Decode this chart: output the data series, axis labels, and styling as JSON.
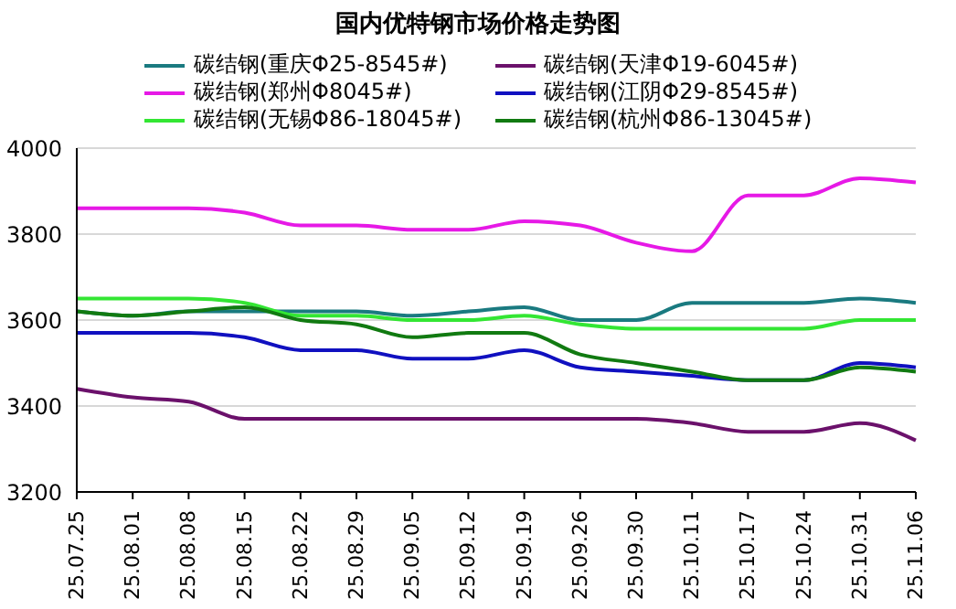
{
  "chart_data": {
    "type": "line",
    "title": "国内优特钢市场价格走势图",
    "categories": [
      "25.07.25",
      "25.08.01",
      "25.08.08",
      "25.08.15",
      "25.08.22",
      "25.08.29",
      "25.09.05",
      "25.09.12",
      "25.09.19",
      "25.09.26",
      "25.09.30",
      "25.10.11",
      "25.10.17",
      "25.10.24",
      "25.10.31",
      "25.11.06"
    ],
    "series": [
      {
        "name": "碳结钢(重庆Φ25-8545#)",
        "color": "#1a7a80",
        "values": [
          3620,
          3610,
          3620,
          3620,
          3620,
          3620,
          3610,
          3620,
          3630,
          3600,
          3600,
          3640,
          3640,
          3640,
          3650,
          3640
        ]
      },
      {
        "name": "碳结钢(天津Φ19-6045#)",
        "color": "#6b116b",
        "values": [
          3440,
          3420,
          3410,
          3370,
          3370,
          3370,
          3370,
          3370,
          3370,
          3370,
          3370,
          3360,
          3340,
          3340,
          3360,
          3320
        ]
      },
      {
        "name": "碳结钢(郑州Φ8045#)",
        "color": "#e619e6",
        "values": [
          3860,
          3860,
          3860,
          3850,
          3820,
          3820,
          3810,
          3810,
          3830,
          3820,
          3780,
          3760,
          3890,
          3890,
          3930,
          3920
        ]
      },
      {
        "name": "碳结钢(江阴Φ29-8545#)",
        "color": "#1010c0",
        "values": [
          3570,
          3570,
          3570,
          3560,
          3530,
          3530,
          3510,
          3510,
          3530,
          3490,
          3480,
          3470,
          3460,
          3460,
          3500,
          3490
        ]
      },
      {
        "name": "碳结钢(无锡Φ86-18045#)",
        "color": "#33e633",
        "values": [
          3650,
          3650,
          3650,
          3640,
          3610,
          3610,
          3600,
          3600,
          3610,
          3590,
          3580,
          3580,
          3580,
          3580,
          3600,
          3600
        ]
      },
      {
        "name": "碳结钢(杭州Φ86-13045#)",
        "color": "#117a11",
        "values": [
          3620,
          3610,
          3620,
          3630,
          3600,
          3590,
          3560,
          3570,
          3570,
          3520,
          3500,
          3480,
          3460,
          3460,
          3490,
          3480
        ]
      }
    ],
    "ylim": [
      3200,
      4000
    ],
    "yticks": [
      3200,
      3400,
      3600,
      3800,
      4000
    ],
    "grid": "y",
    "legend": "top",
    "marker": "none",
    "line_style": "solid"
  }
}
